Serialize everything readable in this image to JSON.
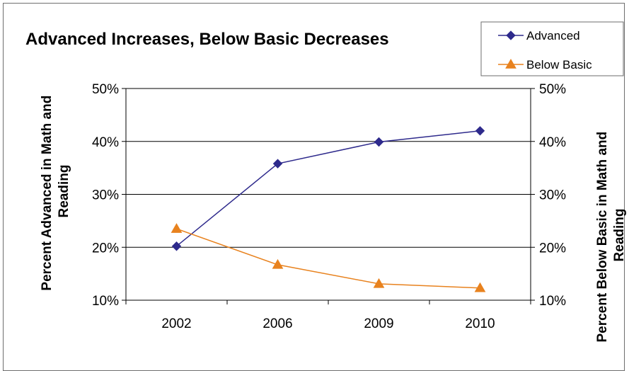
{
  "chart_data": {
    "type": "line",
    "title": "Advanced Increases, Below Basic Decreases",
    "categories": [
      "2002",
      "2006",
      "2009",
      "2010"
    ],
    "series": [
      {
        "name": "Advanced",
        "axis": "left",
        "color": "#2e2a8c",
        "marker": "diamond",
        "values": [
          20.2,
          35.8,
          39.9,
          42.0
        ]
      },
      {
        "name": "Below Basic",
        "axis": "right",
        "color": "#e8821e",
        "marker": "triangle",
        "values": [
          23.5,
          16.7,
          13.1,
          12.3
        ]
      }
    ],
    "ylabel_left": [
      "Percent Advanced in Math and",
      "Reading"
    ],
    "ylabel_right": [
      "Percent Below Basic in Math and",
      "Reading"
    ],
    "y_ticks": [
      "10%",
      "20%",
      "30%",
      "40%",
      "50%"
    ],
    "ylim": [
      10,
      50
    ],
    "y2lim": [
      10,
      50
    ],
    "grid": true,
    "legend_position": "top-right"
  }
}
